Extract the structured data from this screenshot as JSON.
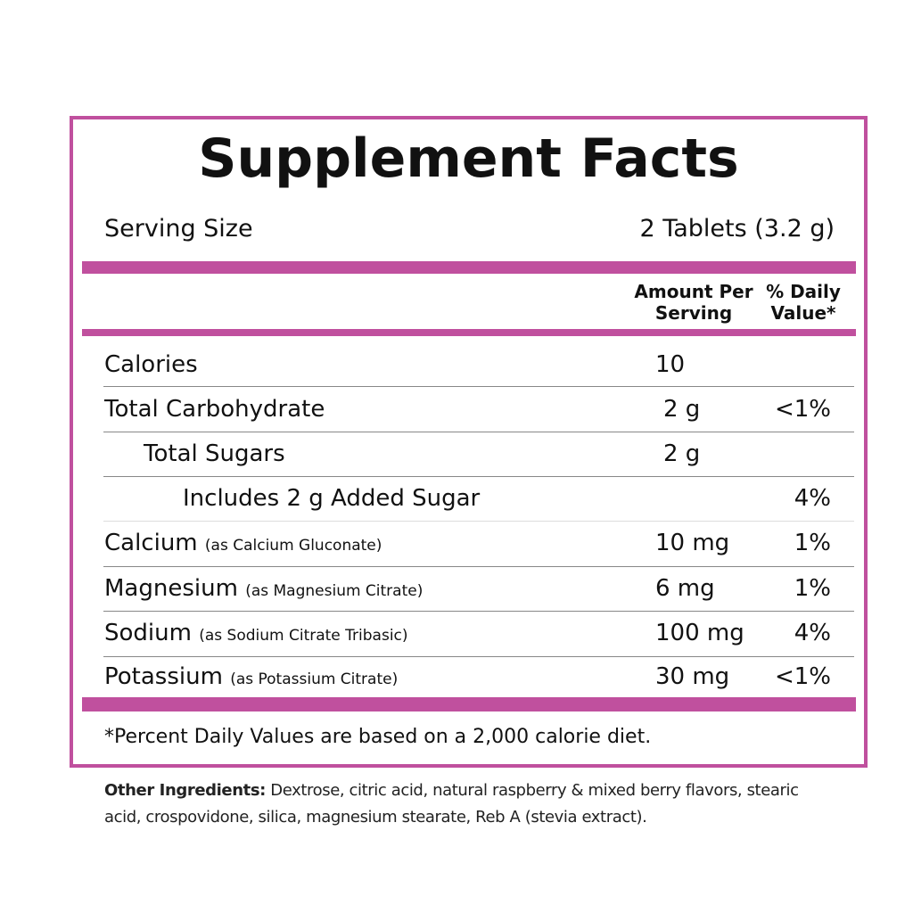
{
  "panel": {
    "title": "Supplement Facts",
    "serving_size": {
      "label": "Serving Size",
      "value": "2 Tablets (3.2 g)"
    },
    "header": {
      "amount": "Amount Per Serving",
      "daily_value": "% Daily Value*"
    },
    "rows": [
      {
        "name": "Calories",
        "amount": "10"
      },
      {
        "name": "Total Carbohydrate",
        "amount": "2 g",
        "daily_value": "<1%"
      },
      {
        "name": "Total Sugars",
        "amount": "2 g"
      },
      {
        "name": "Includes 2 g Added Sugar",
        "daily_value": "4%"
      },
      {
        "name": "Calcium",
        "source": "(as Calcium Gluconate)",
        "amount": "10 mg",
        "daily_value": "1%"
      },
      {
        "name": "Magnesium",
        "source": "(as Magnesium Citrate)",
        "amount": "6 mg",
        "daily_value": "1%"
      },
      {
        "name": "Sodium",
        "source": "(as Sodium Citrate Tribasic)",
        "amount": "100 mg",
        "daily_value": "4%"
      },
      {
        "name": "Potassium",
        "source": "(as Potassium Citrate)",
        "amount": "30 mg",
        "daily_value": "<1%"
      }
    ],
    "footnote": "*Percent Daily Values are based on a 2,000 calorie diet."
  },
  "other_ingredients": {
    "label": "Other Ingredients:",
    "text": "Dextrose, citric acid, natural raspberry & mixed berry flavors, stearic acid, crospovidone, silica, magnesium stearate, Reb A (stevia extract)."
  }
}
